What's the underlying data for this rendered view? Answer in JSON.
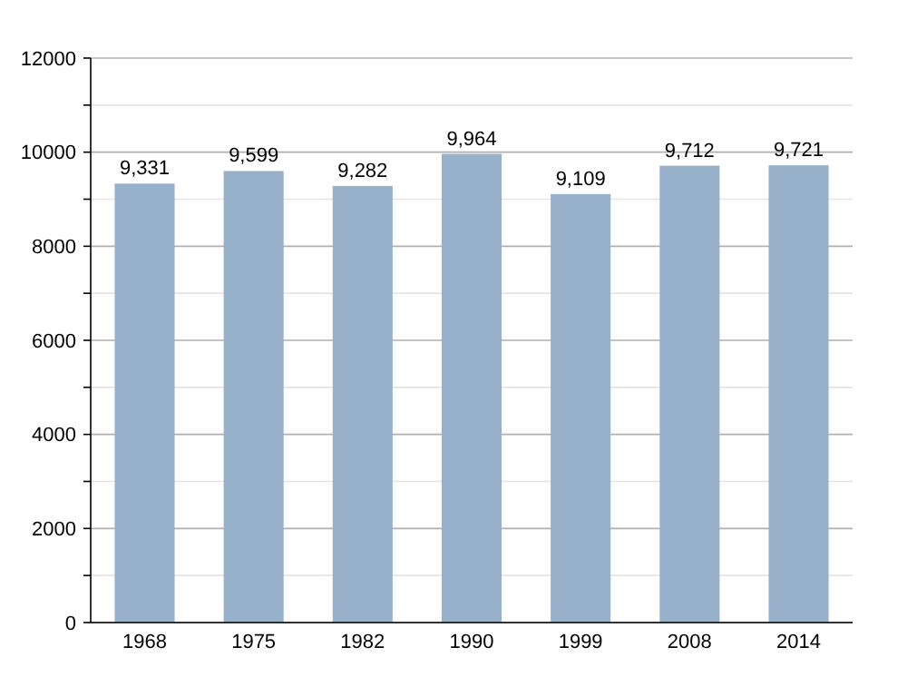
{
  "chart_data": {
    "type": "bar",
    "categories": [
      "1968",
      "1975",
      "1982",
      "1990",
      "1999",
      "2008",
      "2014"
    ],
    "values": [
      9331,
      9599,
      9282,
      9964,
      9109,
      9712,
      9721
    ],
    "value_labels": [
      "9,331",
      "9,599",
      "9,282",
      "9,964",
      "9,109",
      "9,712",
      "9,721"
    ],
    "color": "#97b1cb",
    "ylim": [
      0,
      12000
    ],
    "yticks": [
      0,
      {
        "value": 1000,
        "label": null
      },
      2000,
      {
        "value": 3000,
        "label": null
      },
      4000,
      {
        "value": 5000,
        "label": null
      },
      6000,
      {
        "value": 7000,
        "label": null
      },
      8000,
      {
        "value": 9000,
        "label": null
      },
      10000,
      {
        "value": 11000,
        "label": null
      },
      12000
    ],
    "grid": true
  }
}
